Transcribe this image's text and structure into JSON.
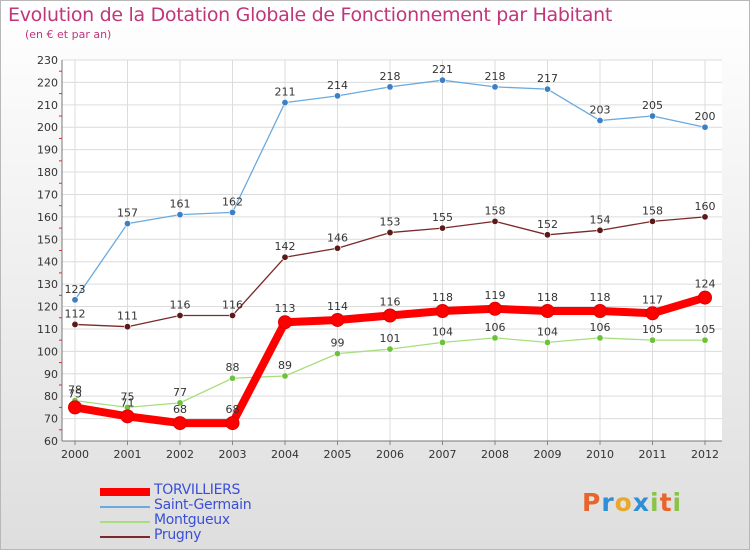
{
  "title": "Evolution de la Dotation Globale de Fonctionnement par Habitant",
  "subtitle": "(en € et par an)",
  "logo": {
    "text": "Proxiti",
    "letters": [
      "P",
      "r",
      "o",
      "x",
      "i",
      "t",
      "i"
    ],
    "colors": [
      "#e8642c",
      "#2d8fd5",
      "#e8a82c",
      "#2d8fd5",
      "#8bc34a",
      "#e8642c",
      "#8bc34a"
    ]
  },
  "chart_data": {
    "type": "line",
    "title": "Evolution de la Dotation Globale de Fonctionnement par Habitant",
    "ylabel": "(en € et par an)",
    "xlabel": "",
    "x": [
      "2000",
      "2001",
      "2002",
      "2003",
      "2004",
      "2005",
      "2006",
      "2007",
      "2008",
      "2009",
      "2010",
      "2011",
      "2012"
    ],
    "ylim": [
      60,
      230
    ],
    "yticks": [
      60,
      70,
      80,
      90,
      100,
      110,
      120,
      130,
      140,
      150,
      160,
      170,
      180,
      190,
      200,
      210,
      220,
      230
    ],
    "legend_position": "bottom-left",
    "series": [
      {
        "name": "TORVILLIERS",
        "color": "#ff0000",
        "marker": "#dd0000",
        "emphasis": true,
        "values": [
          75,
          71,
          68,
          68,
          113,
          114,
          116,
          118,
          119,
          118,
          118,
          117,
          124
        ]
      },
      {
        "name": "Saint-Germain",
        "color": "#6aaade",
        "marker": "#3d7fc4",
        "values": [
          123,
          157,
          161,
          162,
          211,
          214,
          218,
          221,
          218,
          217,
          203,
          205,
          200
        ]
      },
      {
        "name": "Montgueux",
        "color": "#a8de7e",
        "marker": "#6cc23a",
        "values": [
          78,
          75,
          77,
          88,
          89,
          99,
          101,
          104,
          106,
          104,
          106,
          105,
          105
        ]
      },
      {
        "name": "Prugny",
        "color": "#7a2a2a",
        "marker": "#5a1a1a",
        "values": [
          112,
          111,
          116,
          116,
          142,
          146,
          153,
          155,
          158,
          152,
          154,
          158,
          160
        ]
      }
    ]
  }
}
